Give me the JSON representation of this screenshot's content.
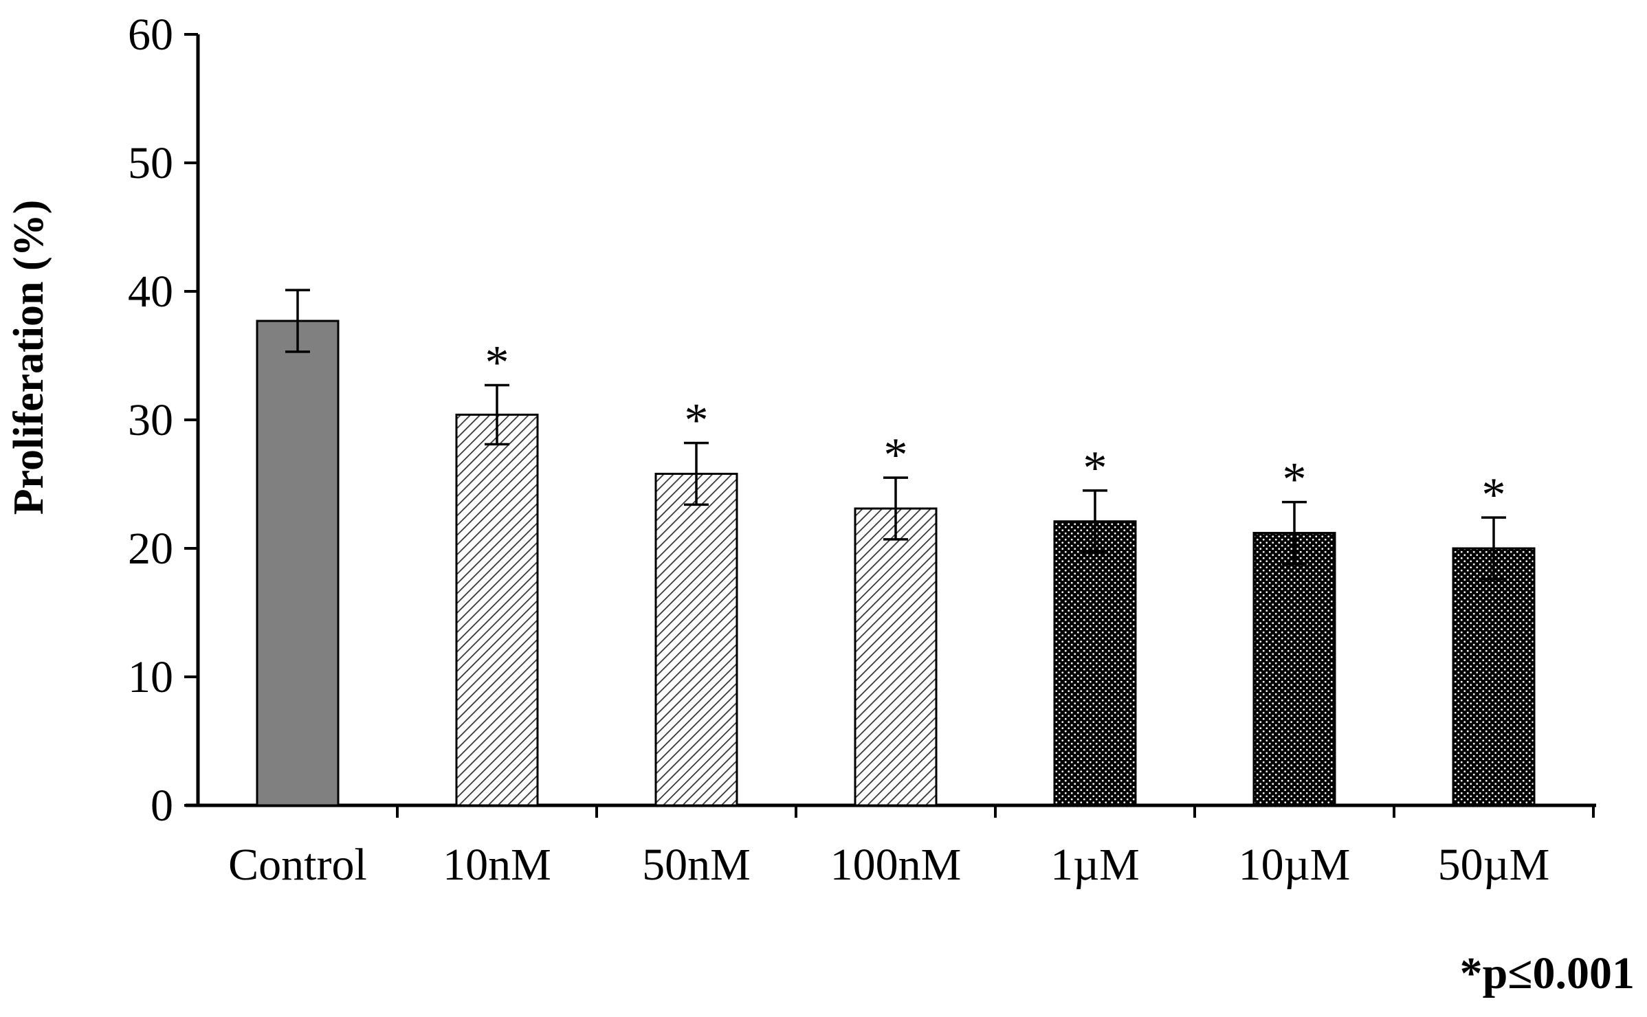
{
  "chart_data": {
    "type": "bar",
    "title": "",
    "xlabel": "",
    "ylabel": "Proliferation  (%)",
    "ylim": [
      0,
      60
    ],
    "yticks": [
      0,
      10,
      20,
      30,
      40,
      50,
      60
    ],
    "grid": false,
    "legend": "none",
    "categories": [
      "Control",
      "10nM",
      "50nM",
      "100nM",
      "1µM",
      "10µM",
      "50µM"
    ],
    "values": [
      37.7,
      30.4,
      25.8,
      23.1,
      22.1,
      21.2,
      20.0
    ],
    "error": [
      2.4,
      2.3,
      2.4,
      2.4,
      2.4,
      2.4,
      2.4
    ],
    "significance": [
      "",
      "*",
      "*",
      "*",
      "*",
      "*",
      "*"
    ],
    "patterns": [
      "solid-gray",
      "hatch",
      "hatch",
      "hatch",
      "dots",
      "dots",
      "dots"
    ],
    "colors": {
      "solid_gray": "#808080",
      "hatch_line": "#333333",
      "dots_background": "#000000",
      "dots_fill": "#ffffff",
      "axis": "#000000"
    },
    "annotation": "*p≤0.001"
  }
}
